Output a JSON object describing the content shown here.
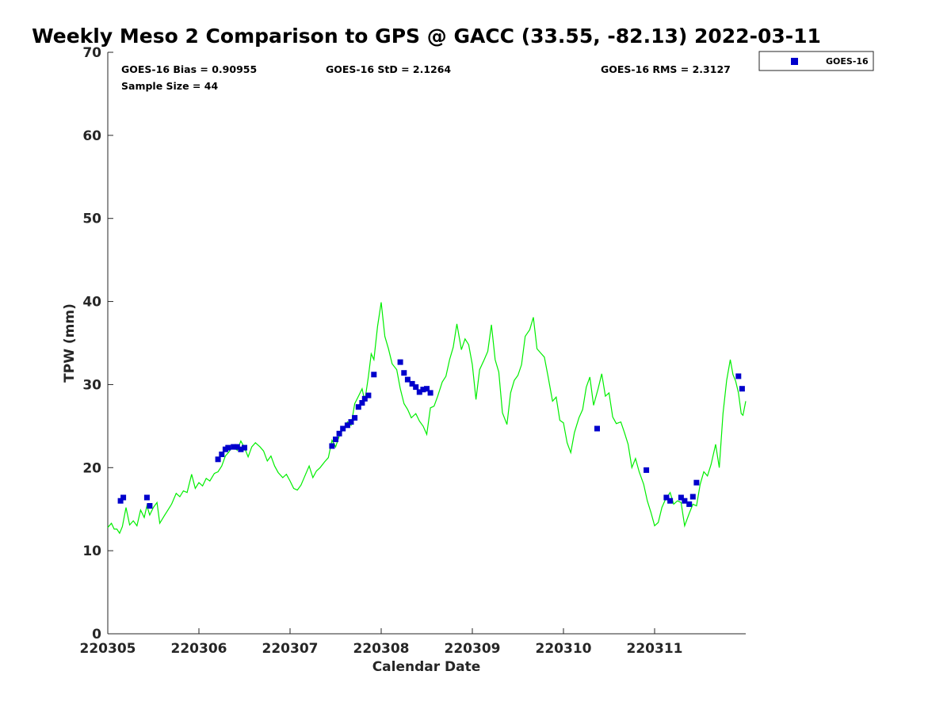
{
  "chart_data": {
    "type": "scatter",
    "title": "Weekly Meso 2 Comparison to GPS @ GACC (33.55, -82.13) 2022-03-11",
    "xlabel": "Calendar Date",
    "ylabel": "TPW (mm)",
    "xlim": [
      0,
      7
    ],
    "ylim": [
      0,
      70
    ],
    "x_ticks": [
      0,
      1,
      2,
      3,
      4,
      5,
      6
    ],
    "x_tick_labels": [
      "220305",
      "220306",
      "220307",
      "220308",
      "220309",
      "220310",
      "220311"
    ],
    "y_ticks": [
      0,
      10,
      20,
      30,
      40,
      50,
      60,
      70
    ],
    "y_tick_labels": [
      "0",
      "10",
      "20",
      "30",
      "40",
      "50",
      "60",
      "70"
    ],
    "grid": false,
    "legend_position": "outside-top-right",
    "stats": {
      "bias": "GOES-16 Bias = 0.90955",
      "std": "GOES-16 StD = 2.1264",
      "rms": "GOES-16 RMS = 2.3127",
      "sample": "Sample Size = 44"
    },
    "series": [
      {
        "name": "GOES-16",
        "kind": "scatter",
        "color": "#0000cc",
        "points": [
          [
            0.14,
            16.0
          ],
          [
            0.17,
            16.4
          ],
          [
            0.43,
            16.4
          ],
          [
            0.46,
            15.4
          ],
          [
            1.21,
            21.0
          ],
          [
            1.25,
            21.6
          ],
          [
            1.29,
            22.2
          ],
          [
            1.32,
            22.4
          ],
          [
            1.38,
            22.5
          ],
          [
            1.42,
            22.5
          ],
          [
            1.46,
            22.2
          ],
          [
            1.5,
            22.4
          ],
          [
            2.46,
            22.6
          ],
          [
            2.5,
            23.4
          ],
          [
            2.54,
            24.1
          ],
          [
            2.58,
            24.7
          ],
          [
            2.63,
            25.1
          ],
          [
            2.67,
            25.5
          ],
          [
            2.71,
            26.0
          ],
          [
            2.75,
            27.3
          ],
          [
            2.79,
            27.8
          ],
          [
            2.82,
            28.3
          ],
          [
            2.86,
            28.7
          ],
          [
            2.92,
            31.2
          ],
          [
            3.21,
            32.7
          ],
          [
            3.25,
            31.4
          ],
          [
            3.29,
            30.6
          ],
          [
            3.34,
            30.1
          ],
          [
            3.38,
            29.7
          ],
          [
            3.42,
            29.1
          ],
          [
            3.46,
            29.4
          ],
          [
            3.5,
            29.5
          ],
          [
            3.54,
            29.0
          ],
          [
            5.37,
            24.7
          ],
          [
            5.91,
            19.7
          ],
          [
            6.13,
            16.4
          ],
          [
            6.17,
            16.0
          ],
          [
            6.29,
            16.4
          ],
          [
            6.33,
            16.0
          ],
          [
            6.38,
            15.6
          ],
          [
            6.42,
            16.5
          ],
          [
            6.46,
            18.2
          ],
          [
            6.92,
            31.0
          ],
          [
            6.96,
            29.5
          ]
        ]
      },
      {
        "name": "",
        "kind": "line",
        "color": "#00ee00",
        "points": [
          [
            0.0,
            12.8
          ],
          [
            0.04,
            13.3
          ],
          [
            0.07,
            12.6
          ],
          [
            0.1,
            12.6
          ],
          [
            0.13,
            12.1
          ],
          [
            0.16,
            12.9
          ],
          [
            0.2,
            15.2
          ],
          [
            0.24,
            13.1
          ],
          [
            0.28,
            13.6
          ],
          [
            0.32,
            13.0
          ],
          [
            0.36,
            14.9
          ],
          [
            0.4,
            14.0
          ],
          [
            0.43,
            15.4
          ],
          [
            0.46,
            14.3
          ],
          [
            0.5,
            15.2
          ],
          [
            0.54,
            15.8
          ],
          [
            0.57,
            13.3
          ],
          [
            0.62,
            14.2
          ],
          [
            0.66,
            14.9
          ],
          [
            0.7,
            15.6
          ],
          [
            0.75,
            16.9
          ],
          [
            0.79,
            16.5
          ],
          [
            0.83,
            17.2
          ],
          [
            0.87,
            17.0
          ],
          [
            0.92,
            19.2
          ],
          [
            0.96,
            17.5
          ],
          [
            1.0,
            18.2
          ],
          [
            1.04,
            17.8
          ],
          [
            1.08,
            18.7
          ],
          [
            1.12,
            18.4
          ],
          [
            1.17,
            19.3
          ],
          [
            1.21,
            19.5
          ],
          [
            1.25,
            20.2
          ],
          [
            1.29,
            21.4
          ],
          [
            1.33,
            21.9
          ],
          [
            1.37,
            22.6
          ],
          [
            1.42,
            22.1
          ],
          [
            1.46,
            23.2
          ],
          [
            1.5,
            22.4
          ],
          [
            1.54,
            21.3
          ],
          [
            1.58,
            22.5
          ],
          [
            1.62,
            23.0
          ],
          [
            1.67,
            22.5
          ],
          [
            1.71,
            22.0
          ],
          [
            1.75,
            20.8
          ],
          [
            1.79,
            21.4
          ],
          [
            1.83,
            20.2
          ],
          [
            1.87,
            19.4
          ],
          [
            1.92,
            18.8
          ],
          [
            1.96,
            19.2
          ],
          [
            2.0,
            18.4
          ],
          [
            2.04,
            17.5
          ],
          [
            2.08,
            17.3
          ],
          [
            2.12,
            17.9
          ],
          [
            2.17,
            19.2
          ],
          [
            2.21,
            20.2
          ],
          [
            2.25,
            18.8
          ],
          [
            2.29,
            19.6
          ],
          [
            2.33,
            20.0
          ],
          [
            2.38,
            20.7
          ],
          [
            2.42,
            21.2
          ],
          [
            2.46,
            23.3
          ],
          [
            2.5,
            22.5
          ],
          [
            2.54,
            23.8
          ],
          [
            2.58,
            24.6
          ],
          [
            2.63,
            25.5
          ],
          [
            2.67,
            25.1
          ],
          [
            2.71,
            27.7
          ],
          [
            2.75,
            28.6
          ],
          [
            2.79,
            29.5
          ],
          [
            2.82,
            28.0
          ],
          [
            2.86,
            31.0
          ],
          [
            2.89,
            33.7
          ],
          [
            2.92,
            33.0
          ],
          [
            2.96,
            37.0
          ],
          [
            3.0,
            39.9
          ],
          [
            3.04,
            35.8
          ],
          [
            3.08,
            34.3
          ],
          [
            3.12,
            32.5
          ],
          [
            3.17,
            31.8
          ],
          [
            3.21,
            29.5
          ],
          [
            3.25,
            27.7
          ],
          [
            3.29,
            27.0
          ],
          [
            3.33,
            26.0
          ],
          [
            3.38,
            26.5
          ],
          [
            3.42,
            25.6
          ],
          [
            3.46,
            25.0
          ],
          [
            3.5,
            24.0
          ],
          [
            3.54,
            27.2
          ],
          [
            3.58,
            27.4
          ],
          [
            3.62,
            28.6
          ],
          [
            3.67,
            30.3
          ],
          [
            3.71,
            31.0
          ],
          [
            3.75,
            33.0
          ],
          [
            3.79,
            34.5
          ],
          [
            3.83,
            37.3
          ],
          [
            3.88,
            34.2
          ],
          [
            3.92,
            35.5
          ],
          [
            3.96,
            34.8
          ],
          [
            4.0,
            32.4
          ],
          [
            4.04,
            28.2
          ],
          [
            4.08,
            31.8
          ],
          [
            4.13,
            33.0
          ],
          [
            4.17,
            34.0
          ],
          [
            4.21,
            37.2
          ],
          [
            4.25,
            33.0
          ],
          [
            4.29,
            31.5
          ],
          [
            4.33,
            26.6
          ],
          [
            4.38,
            25.2
          ],
          [
            4.42,
            29.0
          ],
          [
            4.46,
            30.5
          ],
          [
            4.5,
            31.1
          ],
          [
            4.54,
            32.4
          ],
          [
            4.58,
            35.8
          ],
          [
            4.63,
            36.6
          ],
          [
            4.67,
            38.1
          ],
          [
            4.71,
            34.3
          ],
          [
            4.75,
            33.8
          ],
          [
            4.79,
            33.3
          ],
          [
            4.83,
            31.0
          ],
          [
            4.88,
            28.0
          ],
          [
            4.92,
            28.5
          ],
          [
            4.96,
            25.7
          ],
          [
            5.0,
            25.4
          ],
          [
            5.04,
            23.0
          ],
          [
            5.08,
            21.8
          ],
          [
            5.12,
            24.2
          ],
          [
            5.17,
            26.0
          ],
          [
            5.21,
            27.0
          ],
          [
            5.25,
            29.7
          ],
          [
            5.29,
            30.9
          ],
          [
            5.33,
            27.5
          ],
          [
            5.38,
            29.5
          ],
          [
            5.42,
            31.3
          ],
          [
            5.46,
            28.6
          ],
          [
            5.5,
            29.0
          ],
          [
            5.54,
            26.1
          ],
          [
            5.58,
            25.3
          ],
          [
            5.63,
            25.5
          ],
          [
            5.67,
            24.2
          ],
          [
            5.71,
            22.8
          ],
          [
            5.75,
            20.0
          ],
          [
            5.79,
            21.1
          ],
          [
            5.83,
            19.5
          ],
          [
            5.88,
            18.0
          ],
          [
            5.92,
            16.0
          ],
          [
            5.96,
            14.6
          ],
          [
            6.0,
            13.0
          ],
          [
            6.04,
            13.4
          ],
          [
            6.08,
            15.2
          ],
          [
            6.12,
            16.2
          ],
          [
            6.17,
            17.0
          ],
          [
            6.21,
            15.6
          ],
          [
            6.25,
            16.0
          ],
          [
            6.29,
            15.8
          ],
          [
            6.33,
            13.0
          ],
          [
            6.38,
            14.5
          ],
          [
            6.42,
            15.6
          ],
          [
            6.46,
            15.4
          ],
          [
            6.5,
            18.0
          ],
          [
            6.54,
            19.5
          ],
          [
            6.58,
            19.0
          ],
          [
            6.62,
            20.4
          ],
          [
            6.67,
            22.8
          ],
          [
            6.71,
            20.0
          ],
          [
            6.75,
            26.5
          ],
          [
            6.79,
            30.5
          ],
          [
            6.83,
            33.0
          ],
          [
            6.86,
            31.2
          ],
          [
            6.89,
            30.4
          ],
          [
            6.92,
            29.0
          ],
          [
            6.95,
            26.5
          ],
          [
            6.97,
            26.3
          ],
          [
            7.0,
            28.0
          ]
        ]
      }
    ]
  }
}
